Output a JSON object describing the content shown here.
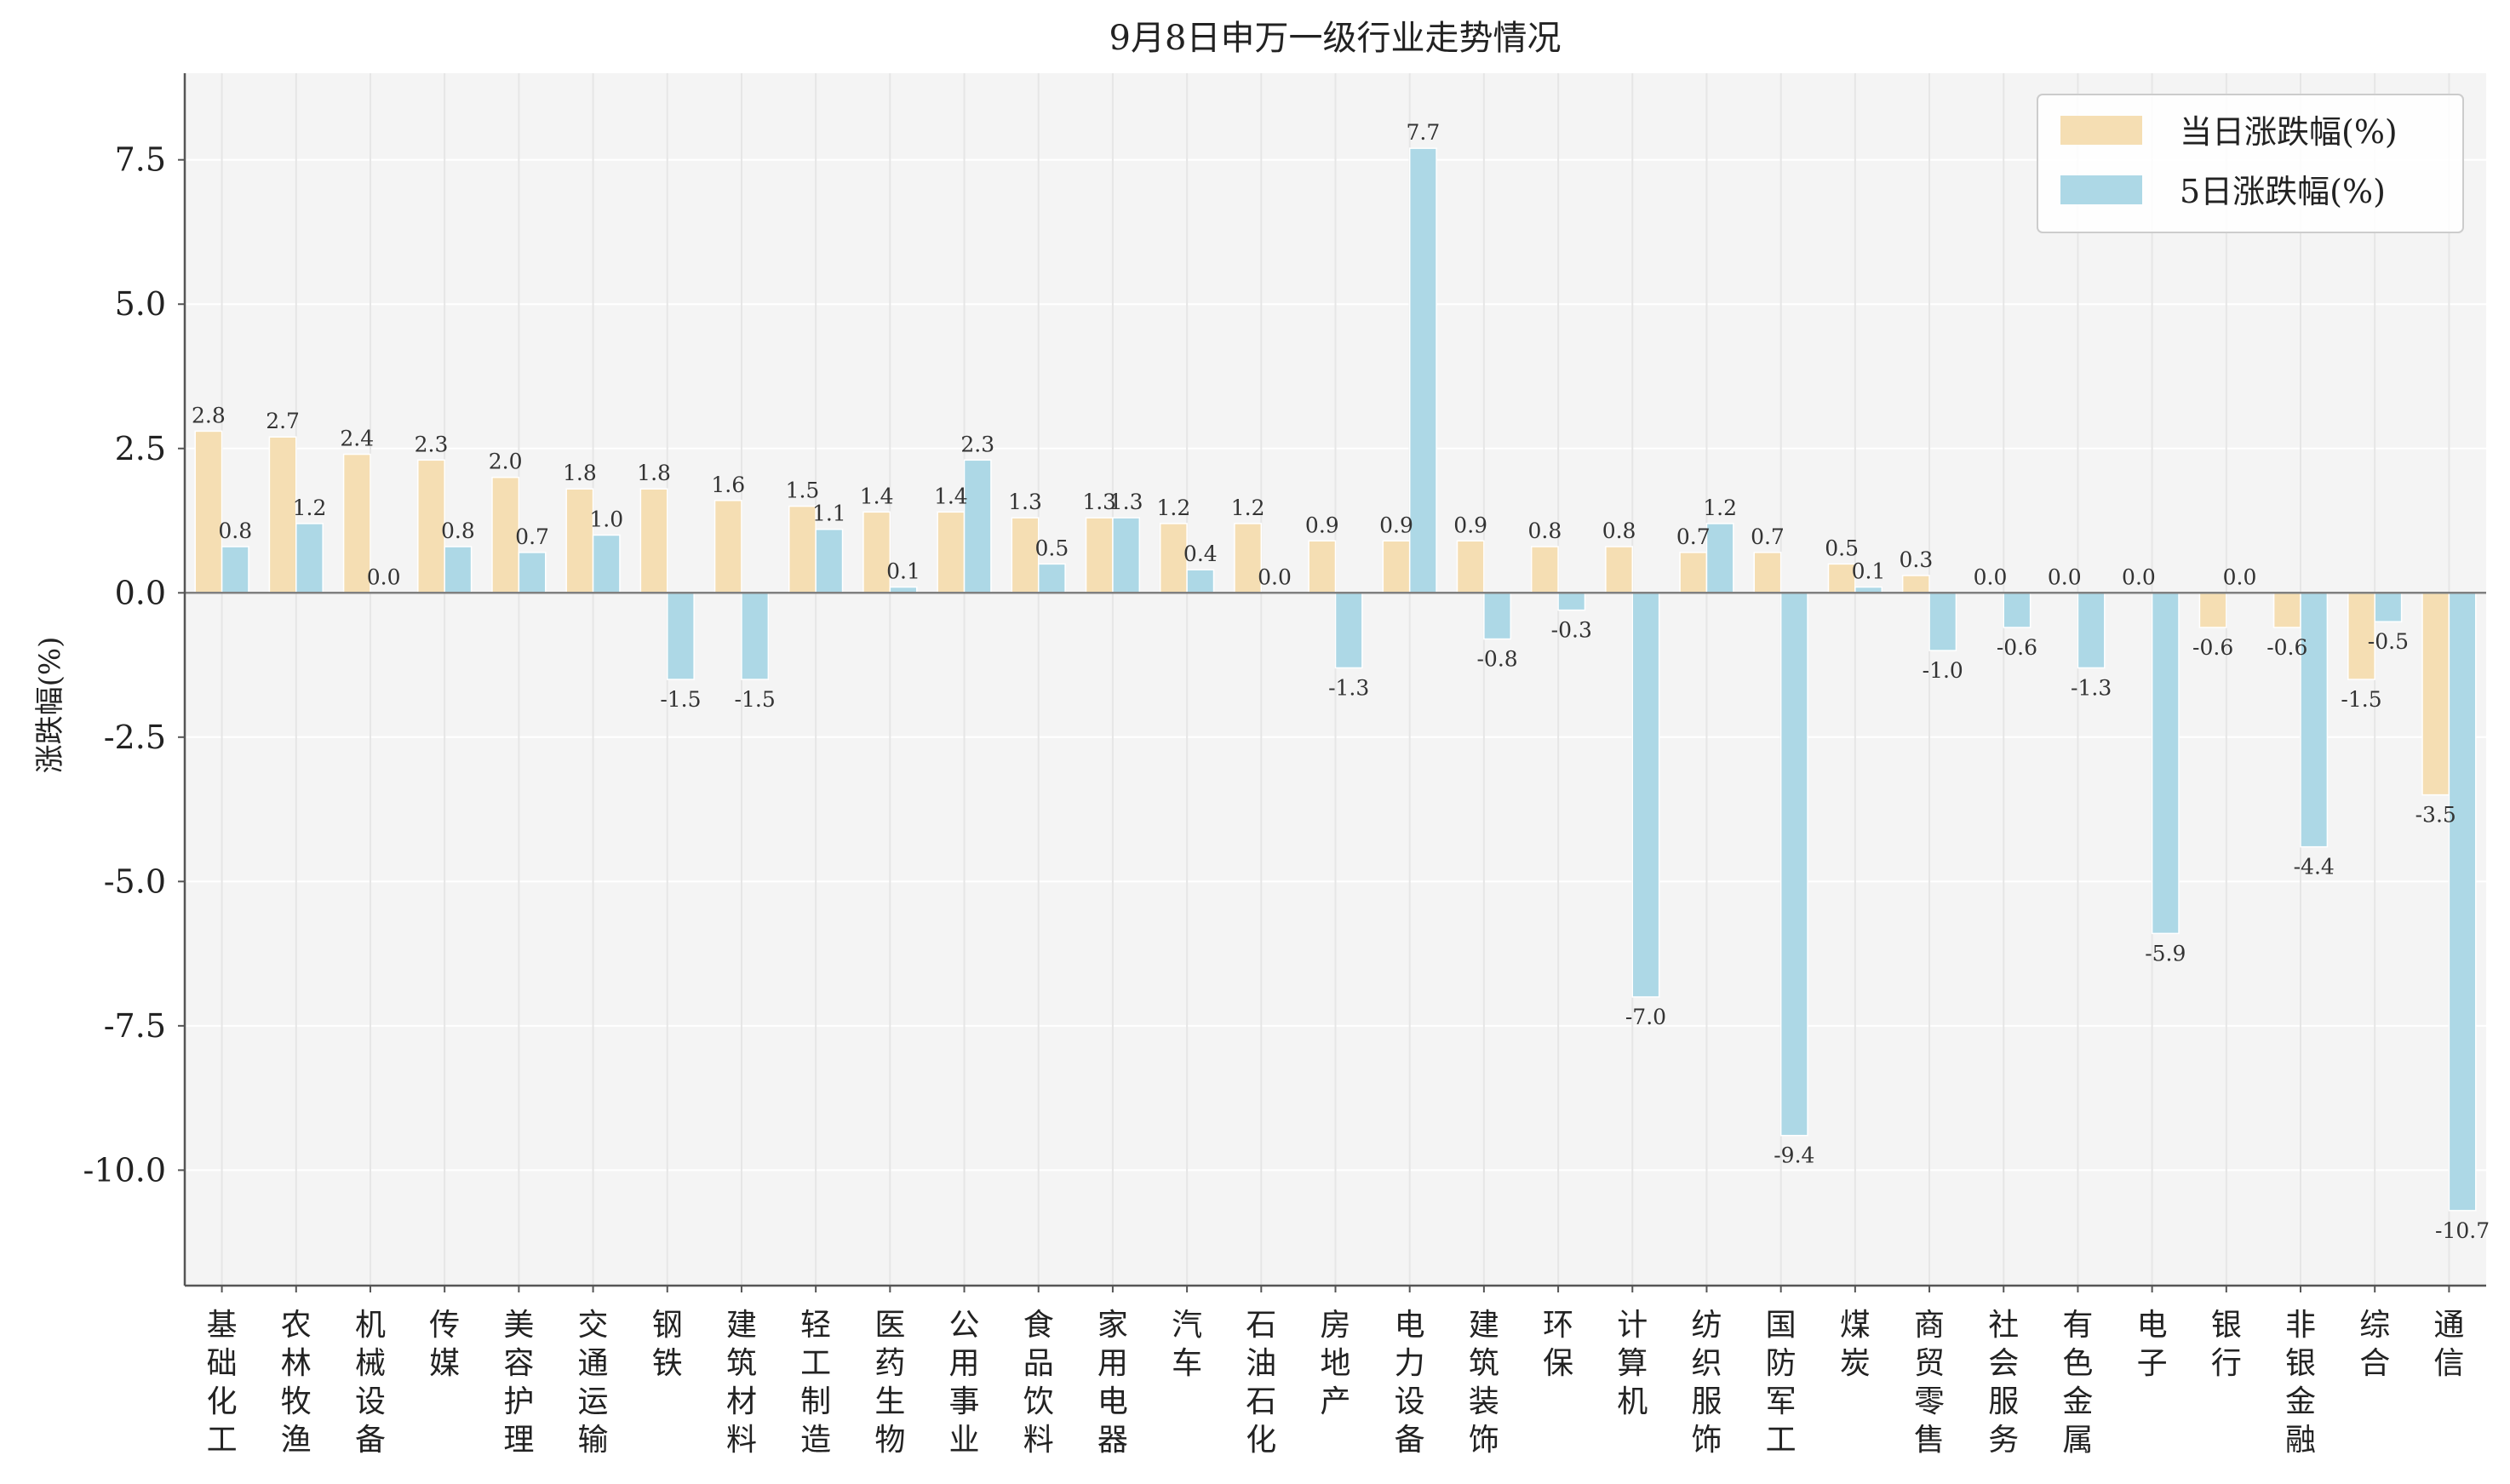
{
  "chart_data": {
    "type": "bar",
    "title": "9月8日申万一级行业走势情况",
    "xlabel": "",
    "ylabel": "涨跌幅(%)",
    "ylim": [
      -12.0,
      9.0
    ],
    "yticks": [
      7.5,
      5.0,
      2.5,
      0.0,
      -2.5,
      -5.0,
      -7.5,
      -10.0
    ],
    "ytick_labels": [
      "7.5",
      "5.0",
      "2.5",
      "0.0",
      "-2.5",
      "-5.0",
      "-7.5",
      "-10.0"
    ],
    "grid": true,
    "legend_position": "top-right",
    "categories": [
      "基础化工",
      "农林牧渔",
      "机械设备",
      "传媒",
      "美容护理",
      "交通运输",
      "钢铁",
      "建筑材料",
      "轻工制造",
      "医药生物",
      "公用事业",
      "食品饮料",
      "家用电器",
      "汽车",
      "石油石化",
      "房地产",
      "电力设备",
      "建筑装饰",
      "环保",
      "计算机",
      "纺织服饰",
      "国防军工",
      "煤炭",
      "商贸零售",
      "社会服务",
      "有色金属",
      "电子",
      "银行",
      "非银金融",
      "综合",
      "通信"
    ],
    "series": [
      {
        "name": "当日涨跌幅(%)",
        "color": "#f5deb3",
        "labels": [
          "2.8",
          "2.7",
          "2.4",
          "2.3",
          "2.0",
          "1.8",
          "1.8",
          "1.6",
          "1.5",
          "1.4",
          "1.4",
          "1.3",
          "1.3",
          "1.2",
          "1.2",
          "0.9",
          "0.9",
          "0.9",
          "0.8",
          "0.8",
          "0.7",
          "0.7",
          "0.5",
          "0.3",
          "0.0",
          "0.0",
          "0.0",
          "-0.6",
          "-0.6",
          "-1.5",
          "-3.5"
        ],
        "values": [
          2.8,
          2.7,
          2.4,
          2.3,
          2.0,
          1.8,
          1.8,
          1.6,
          1.5,
          1.4,
          1.4,
          1.3,
          1.3,
          1.2,
          1.2,
          0.9,
          0.9,
          0.9,
          0.8,
          0.8,
          0.7,
          0.7,
          0.5,
          0.3,
          0.0,
          0.0,
          0.0,
          -0.6,
          -0.6,
          -1.5,
          -3.5
        ]
      },
      {
        "name": "5日涨跌幅(%)",
        "color": "#add8e6",
        "labels": [
          "0.8",
          "1.2",
          "0.0",
          "0.8",
          "0.7",
          "1.0",
          "-1.5",
          "-1.5",
          "1.1",
          "0.1",
          "2.3",
          "0.5",
          "1.3",
          "0.4",
          "0.0",
          "-1.3",
          "7.7",
          "-0.8",
          "-0.3",
          "-7.0",
          "1.2",
          "-9.4",
          "0.1",
          "-1.0",
          "-0.6",
          "-1.3",
          "-5.9",
          "0.0",
          "-4.4",
          "-0.5",
          "-10.7"
        ],
        "values": [
          0.8,
          1.2,
          0.0,
          0.8,
          0.7,
          1.0,
          -1.5,
          -1.5,
          1.1,
          0.1,
          2.3,
          0.5,
          1.3,
          0.4,
          0.0,
          -1.3,
          7.7,
          -0.8,
          -0.3,
          -7.0,
          1.2,
          -9.4,
          0.1,
          -1.0,
          -0.6,
          -1.3,
          -5.9,
          0.0,
          -4.4,
          -0.5,
          -10.7
        ]
      }
    ]
  }
}
